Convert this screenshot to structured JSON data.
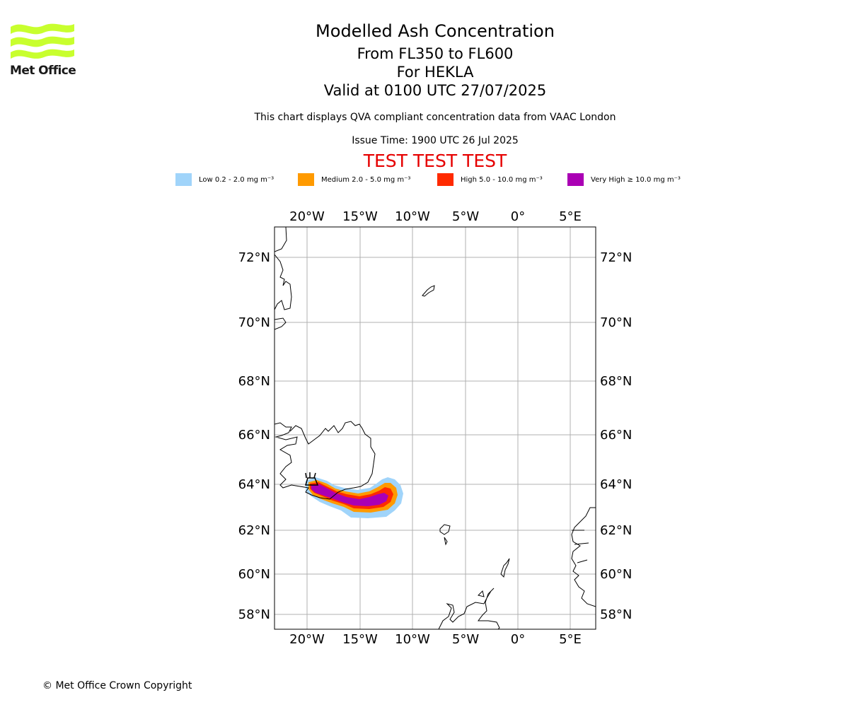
{
  "header": {
    "logo_text": "Met Office",
    "title": "Modelled Ash Concentration",
    "levels": "From FL350 to FL600",
    "volcano": "For HEKLA",
    "valid": "Valid at 0100 UTC 27/07/2025",
    "description": "This chart displays QVA compliant concentration data from VAAC London",
    "issue_time": "Issue Time: 1900 UTC 26 Jul 2025",
    "test_banner": "TEST TEST TEST"
  },
  "legend": [
    {
      "label": "Low 0.2 - 2.0 mg m⁻³",
      "color": "#a0d4fa"
    },
    {
      "label": "Medium 2.0 - 5.0 mg m⁻³",
      "color": "#ff9a00"
    },
    {
      "label": "High 5.0 - 10.0 mg m⁻³",
      "color": "#ff2a00"
    },
    {
      "label": "Very High ≥ 10.0 mg m⁻³",
      "color": "#aa00b4"
    }
  ],
  "map": {
    "lon_labels": [
      "20°W",
      "15°W",
      "10°W",
      "5°W",
      "0°",
      "5°E"
    ],
    "lat_labels": [
      "72°N",
      "70°N",
      "68°N",
      "66°N",
      "64°N",
      "62°N",
      "60°N",
      "58°N"
    ],
    "grid_color": "#b0b0b0",
    "coast_color": "#000000"
  },
  "footer": {
    "copyright": "© Met Office Crown Copyright"
  }
}
